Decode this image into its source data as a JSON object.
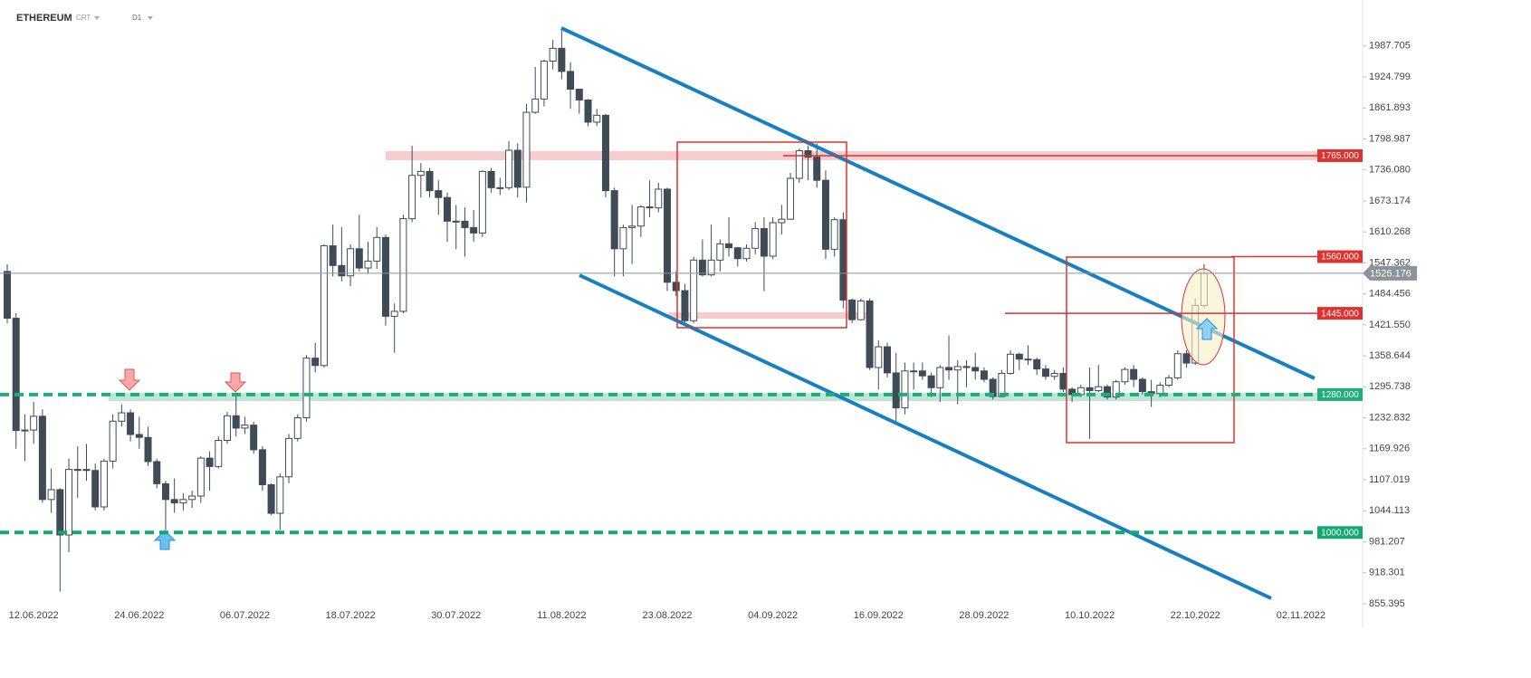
{
  "header": {
    "symbol": "ETHEREUM",
    "mode": "CRT",
    "interval": "D1"
  },
  "chart_data": {
    "type": "candlestick",
    "categories": [
      null,
      null,
      null,
      "12.06.2022",
      null,
      null,
      null,
      null,
      null,
      null,
      null,
      null,
      null,
      null,
      null,
      "24.06.2022",
      null,
      null,
      null,
      null,
      null,
      null,
      null,
      null,
      null,
      null,
      null,
      "06.07.2022",
      null,
      null,
      null,
      null,
      null,
      null,
      null,
      null,
      null,
      null,
      null,
      "18.07.2022",
      null,
      null,
      null,
      null,
      null,
      null,
      null,
      null,
      null,
      null,
      null,
      "30.07.2022",
      null,
      null,
      null,
      null,
      null,
      null,
      null,
      null,
      null,
      null,
      null,
      "11.08.2022",
      null,
      null,
      null,
      null,
      null,
      null,
      null,
      null,
      null,
      null,
      null,
      "23.08.2022",
      null,
      null,
      null,
      null,
      null,
      null,
      null,
      null,
      null,
      null,
      null,
      "04.09.2022",
      null,
      null,
      null,
      null,
      null,
      null,
      null,
      null,
      null,
      null,
      null,
      "16.09.2022",
      null,
      null,
      null,
      null,
      null,
      null,
      null,
      null,
      null,
      null,
      null,
      "28.09.2022",
      null,
      null,
      null,
      null,
      null,
      null,
      null,
      null,
      null,
      null,
      null,
      "10.10.2022",
      null,
      null,
      null,
      null,
      null,
      null,
      null,
      null,
      null,
      null,
      null,
      "22.10.2022",
      null,
      null,
      null,
      null,
      null,
      null,
      null,
      null,
      null,
      null,
      null,
      "02.11.2022"
    ],
    "open": [
      1530,
      1435,
      1207,
      1208,
      1236,
      1067,
      1087,
      995,
      1128,
      1128,
      1126,
      1052,
      1145,
      1226,
      1243,
      1199,
      1193,
      1144,
      1099,
      1067,
      1060,
      1067,
      1074,
      1151,
      1134,
      1187,
      1237,
      1212,
      1218,
      1168,
      1097,
      1039,
      1113,
      1191,
      1233,
      1354,
      1339,
      1582,
      1542,
      1521,
      1576,
      1537,
      1551,
      1599,
      1439,
      1449,
      1637,
      1725,
      1733,
      1694,
      1680,
      1632,
      1632,
      1619,
      1608,
      1733,
      1700,
      1700,
      1776,
      1701,
      1853,
      1880,
      1957,
      1983,
      1936,
      1900,
      1878,
      1833,
      1847,
      1694,
      1576,
      1619,
      1622,
      1661,
      1659,
      1697,
      1508,
      1491,
      1430,
      1553,
      1523,
      1553,
      1586,
      1578,
      1556,
      1577,
      1617,
      1561,
      1629,
      1636,
      1719,
      1775,
      1762,
      1715,
      1575,
      1635,
      1472,
      1432,
      1470,
      1335,
      1377,
      1324,
      1253,
      1328,
      1328,
      1318,
      1294,
      1335,
      1330,
      1337,
      1335,
      1328,
      1311,
      1276,
      1323,
      1362,
      1352,
      1351,
      1332,
      1317,
      1323,
      1291,
      1280,
      1294,
      1288,
      1296,
      1275,
      1306,
      1331,
      1311,
      1286,
      1282,
      1299,
      1314,
      1363,
      1344,
      1461,
      null,
      null,
      null,
      null,
      null,
      null,
      null,
      null,
      null,
      null,
      null
    ],
    "high": [
      1545,
      1445,
      1240,
      1265,
      1250,
      1130,
      1090,
      1150,
      1175,
      1180,
      1140,
      1150,
      1240,
      1260,
      1250,
      1235,
      1215,
      1150,
      1105,
      1110,
      1080,
      1085,
      1155,
      1165,
      1195,
      1245,
      1280,
      1235,
      1225,
      1175,
      1100,
      1120,
      1200,
      1240,
      1360,
      1385,
      1585,
      1625,
      1620,
      1585,
      1645,
      1590,
      1620,
      1605,
      1465,
      1645,
      1785,
      1750,
      1740,
      1715,
      1690,
      1665,
      1660,
      1655,
      1735,
      1740,
      1720,
      1795,
      1790,
      1870,
      1945,
      1960,
      2000,
      2020,
      1955,
      1900,
      1880,
      1860,
      1850,
      1700,
      1625,
      1665,
      1665,
      1715,
      1710,
      1700,
      1530,
      1505,
      1560,
      1595,
      1625,
      1595,
      1640,
      1580,
      1585,
      1630,
      1640,
      1640,
      1665,
      1730,
      1780,
      1785,
      1790,
      1735,
      1640,
      1650,
      1475,
      1475,
      1475,
      1390,
      1385,
      1365,
      1345,
      1345,
      1345,
      1325,
      1340,
      1400,
      1350,
      1350,
      1365,
      1335,
      1315,
      1330,
      1370,
      1365,
      1380,
      1355,
      1340,
      1330,
      1335,
      1295,
      1300,
      1335,
      1340,
      1300,
      1310,
      1335,
      1340,
      1315,
      1310,
      1305,
      1320,
      1370,
      1370,
      1475,
      1545,
      null,
      null,
      null,
      null,
      null,
      null,
      null,
      null,
      null,
      null,
      null
    ],
    "low": [
      1425,
      1170,
      1145,
      1180,
      1060,
      1040,
      880,
      960,
      1070,
      1105,
      1045,
      1045,
      1130,
      1215,
      1185,
      1170,
      1135,
      1090,
      1005,
      1040,
      1045,
      1050,
      1060,
      1085,
      1130,
      1180,
      1195,
      1200,
      1160,
      1085,
      1035,
      1005,
      1100,
      1185,
      1225,
      1325,
      1335,
      1520,
      1510,
      1500,
      1530,
      1525,
      1535,
      1420,
      1365,
      1445,
      1630,
      1680,
      1680,
      1645,
      1590,
      1575,
      1560,
      1590,
      1600,
      1690,
      1685,
      1695,
      1680,
      1670,
      1850,
      1865,
      1940,
      1920,
      1860,
      1850,
      1825,
      1825,
      1680,
      1520,
      1520,
      1545,
      1600,
      1640,
      1650,
      1490,
      1480,
      1425,
      1425,
      1520,
      1520,
      1530,
      1560,
      1540,
      1550,
      1565,
      1490,
      1555,
      1605,
      1635,
      1710,
      1715,
      1700,
      1555,
      1560,
      1455,
      1425,
      1430,
      1330,
      1290,
      1315,
      1220,
      1240,
      1290,
      1310,
      1275,
      1265,
      1310,
      1260,
      1295,
      1310,
      1305,
      1270,
      1275,
      1320,
      1330,
      1340,
      1320,
      1310,
      1310,
      1285,
      1265,
      1275,
      1190,
      1285,
      1270,
      1270,
      1300,
      1295,
      1280,
      1255,
      1275,
      1295,
      1310,
      1335,
      1340,
      1455,
      null,
      null,
      null,
      null,
      null,
      null,
      null,
      null,
      null,
      null,
      null
    ],
    "close": [
      1435,
      1207,
      1208,
      1236,
      1067,
      1087,
      995,
      1128,
      1128,
      1126,
      1052,
      1145,
      1226,
      1243,
      1199,
      1193,
      1144,
      1099,
      1067,
      1060,
      1067,
      1074,
      1151,
      1134,
      1187,
      1237,
      1212,
      1218,
      1168,
      1097,
      1039,
      1113,
      1191,
      1233,
      1354,
      1339,
      1582,
      1542,
      1521,
      1576,
      1537,
      1551,
      1599,
      1439,
      1449,
      1637,
      1725,
      1733,
      1694,
      1680,
      1632,
      1632,
      1619,
      1608,
      1733,
      1700,
      1700,
      1776,
      1701,
      1853,
      1880,
      1957,
      1983,
      1936,
      1900,
      1878,
      1833,
      1847,
      1694,
      1576,
      1619,
      1622,
      1661,
      1659,
      1697,
      1508,
      1491,
      1430,
      1553,
      1523,
      1553,
      1586,
      1578,
      1556,
      1577,
      1617,
      1561,
      1629,
      1636,
      1719,
      1775,
      1762,
      1715,
      1575,
      1635,
      1472,
      1432,
      1470,
      1335,
      1377,
      1324,
      1253,
      1328,
      1328,
      1318,
      1294,
      1335,
      1330,
      1337,
      1335,
      1328,
      1311,
      1276,
      1323,
      1362,
      1352,
      1351,
      1332,
      1317,
      1323,
      1291,
      1280,
      1294,
      1288,
      1296,
      1275,
      1306,
      1331,
      1311,
      1286,
      1282,
      1299,
      1314,
      1363,
      1344,
      1461,
      1526,
      null,
      null,
      null,
      null,
      null,
      null,
      null,
      null,
      null,
      null,
      null
    ],
    "up_color": "#ffffff",
    "down_color": "#3f4b55",
    "ylim": [
      805,
      2081
    ],
    "yticks": [
      855.395,
      918.301,
      981.207,
      1044.113,
      1107.019,
      1169.926,
      1232.832,
      1295.738,
      1358.644,
      {
        "value": 1421.55,
        "label": "1421.550"
      },
      1484.456,
      1547.362,
      1610.268,
      1673.174,
      {
        "value": 1736.08,
        "label": "1736.080"
      },
      1798.987,
      1861.893,
      1924.799,
      1987.705
    ],
    "levels": [
      {
        "value": 1765,
        "label": "1765.000",
        "color": "#e0312f",
        "dashed": false
      },
      {
        "value": 1560,
        "label": "1560.000",
        "color": "#e0312f",
        "dashed": false
      },
      {
        "value": 1445,
        "label": "1445.000",
        "color": "#e0312f",
        "dashed": false
      },
      {
        "value": 1280,
        "label": "1280.000",
        "color": "#1fae79",
        "dashed": true
      },
      {
        "value": 1000,
        "label": "1000.000",
        "color": "#12a86e",
        "dashed": true
      }
    ],
    "last_price": {
      "value": 1526.176,
      "label": "1526.176",
      "color": "#8b949b"
    }
  }
}
